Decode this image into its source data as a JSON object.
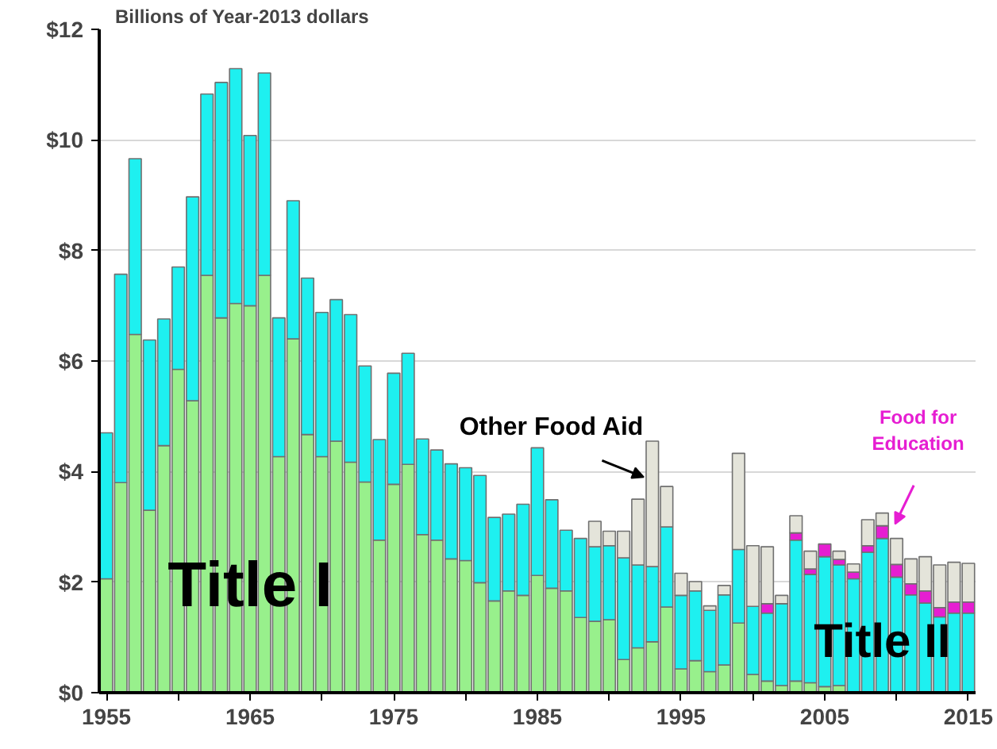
{
  "chart_data": {
    "type": "bar",
    "stacked": true,
    "ylabel": "Billions of Year-2013 dollars",
    "x": [
      1955,
      1956,
      1957,
      1958,
      1959,
      1960,
      1961,
      1962,
      1963,
      1964,
      1965,
      1966,
      1967,
      1968,
      1969,
      1970,
      1971,
      1972,
      1973,
      1974,
      1975,
      1976,
      1977,
      1978,
      1979,
      1980,
      1981,
      1982,
      1983,
      1984,
      1985,
      1986,
      1987,
      1988,
      1989,
      1990,
      1991,
      1992,
      1993,
      1994,
      1995,
      1996,
      1997,
      1998,
      1999,
      2000,
      2001,
      2002,
      2003,
      2004,
      2005,
      2006,
      2007,
      2008,
      2009,
      2010,
      2011,
      2012,
      2013,
      2014,
      2015
    ],
    "series": [
      {
        "name": "Title I",
        "color": "#98f08c",
        "values": [
          2.06,
          3.8,
          6.48,
          3.3,
          4.47,
          5.85,
          5.28,
          7.55,
          6.78,
          7.04,
          7.0,
          7.55,
          4.27,
          6.4,
          4.67,
          4.27,
          4.55,
          4.17,
          3.81,
          2.76,
          3.77,
          4.13,
          2.86,
          2.76,
          2.42,
          2.39,
          1.99,
          1.66,
          1.84,
          1.76,
          2.12,
          1.89,
          1.84,
          1.36,
          1.29,
          1.32,
          0.6,
          0.81,
          0.92,
          1.55,
          0.43,
          0.58,
          0.38,
          0.5,
          1.26,
          0.33,
          0.21,
          0.13,
          0.21,
          0.18,
          0.11,
          0.13,
          null,
          null,
          null,
          null,
          null,
          null,
          null,
          null,
          null
        ]
      },
      {
        "name": "Title II",
        "color": "#1ef0f0",
        "values": [
          2.64,
          3.77,
          3.18,
          3.08,
          2.29,
          1.85,
          3.69,
          3.28,
          4.26,
          4.25,
          3.08,
          3.66,
          2.51,
          2.5,
          2.83,
          2.61,
          2.56,
          2.67,
          2.1,
          1.82,
          2.01,
          2.01,
          1.73,
          1.63,
          1.72,
          1.68,
          1.94,
          1.51,
          1.39,
          1.65,
          2.31,
          1.6,
          1.1,
          1.43,
          1.35,
          1.34,
          1.84,
          1.5,
          1.36,
          1.45,
          1.33,
          1.26,
          1.11,
          1.27,
          1.33,
          1.23,
          1.23,
          1.48,
          2.55,
          1.96,
          2.35,
          2.18,
          2.06,
          2.54,
          2.79,
          2.09,
          1.77,
          1.62,
          1.37,
          1.44,
          1.44
        ]
      },
      {
        "name": "Food for Education",
        "color": "#e61ed2",
        "values": [
          null,
          null,
          null,
          null,
          null,
          null,
          null,
          null,
          null,
          null,
          null,
          null,
          null,
          null,
          null,
          null,
          null,
          null,
          null,
          null,
          null,
          null,
          null,
          null,
          null,
          null,
          null,
          null,
          null,
          null,
          null,
          null,
          null,
          null,
          null,
          null,
          null,
          null,
          null,
          null,
          null,
          null,
          null,
          null,
          null,
          null,
          0.17,
          null,
          0.13,
          0.1,
          0.23,
          0.1,
          0.12,
          0.12,
          0.23,
          0.23,
          0.2,
          0.22,
          0.17,
          0.2,
          0.2
        ]
      },
      {
        "name": "Other Food Aid",
        "color": "#e4e4da",
        "values": [
          null,
          null,
          null,
          null,
          null,
          null,
          null,
          null,
          null,
          null,
          null,
          null,
          null,
          null,
          null,
          null,
          null,
          null,
          null,
          null,
          null,
          null,
          null,
          null,
          null,
          null,
          null,
          null,
          null,
          null,
          null,
          null,
          null,
          null,
          0.46,
          0.26,
          0.48,
          1.19,
          2.27,
          0.73,
          0.4,
          0.17,
          0.08,
          0.17,
          1.74,
          1.1,
          1.03,
          0.15,
          0.31,
          0.32,
          null,
          0.15,
          0.15,
          0.47,
          0.23,
          0.47,
          0.45,
          0.62,
          0.77,
          0.72,
          0.7
        ]
      }
    ],
    "ylim": [
      0,
      12
    ],
    "yticks": [
      {
        "value": 0,
        "label": "$0"
      },
      {
        "value": 2,
        "label": "$2"
      },
      {
        "value": 4,
        "label": "$4"
      },
      {
        "value": 6,
        "label": "$6"
      },
      {
        "value": 8,
        "label": "$8"
      },
      {
        "value": 10,
        "label": "$10"
      },
      {
        "value": 12,
        "label": "$12"
      }
    ],
    "xlim": [
      1954.5,
      2015.5
    ],
    "xticks": [
      1955,
      {
        "value": 1960,
        "label": null
      },
      1965,
      {
        "value": 1970,
        "label": null
      },
      1975,
      {
        "value": 1980,
        "label": null
      },
      1985,
      {
        "value": 1990,
        "label": null
      },
      1995,
      {
        "value": 2000,
        "label": null
      },
      2005,
      {
        "value": 2010,
        "label": null
      },
      2015
    ],
    "grid": "y",
    "legend": false
  }
}
